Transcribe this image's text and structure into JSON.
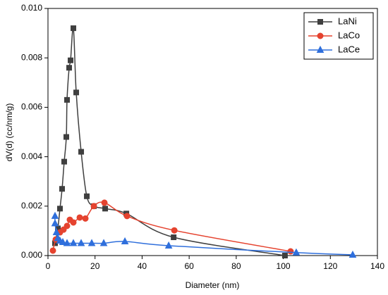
{
  "chart_data": {
    "type": "line",
    "xlabel": "Diameter (nm)",
    "ylabel": "dV(d) (cc/nm/g)",
    "xlim": [
      0,
      140
    ],
    "xticks": [
      0,
      20,
      40,
      60,
      80,
      100,
      120,
      140
    ],
    "ylim": [
      0,
      0.01
    ],
    "yticks": [
      {
        "value": 0,
        "label": "0.000"
      },
      {
        "value": 0.002,
        "label": "0.002"
      },
      {
        "value": 0.004,
        "label": "0.004"
      },
      {
        "value": 0.006,
        "label": "0.006"
      },
      {
        "value": 0.008,
        "label": "0.008"
      },
      {
        "value": 0.01,
        "label": "0.010"
      }
    ],
    "legend": "upper right",
    "series": [
      {
        "name": "LaNi",
        "color": "#3f3f3f",
        "marker": "square",
        "x": [
          3.0,
          4.2,
          5.1,
          6.0,
          6.9,
          7.8,
          8.1,
          9.0,
          9.6,
          10.8,
          12.0,
          14.1,
          16.5,
          19.5,
          24.3,
          33.3,
          53.4,
          100.7
        ],
        "values": [
          0.0005,
          0.0011,
          0.0019,
          0.0027,
          0.0038,
          0.0048,
          0.0063,
          0.0076,
          0.0079,
          0.0092,
          0.0066,
          0.0042,
          0.0024,
          0.002,
          0.0019,
          0.0017,
          0.00074,
          0.0
        ]
      },
      {
        "name": "LaCo",
        "color": "#e5432f",
        "marker": "circle",
        "x": [
          2.1,
          3.3,
          5.1,
          6.6,
          8.1,
          9.3,
          10.8,
          13.5,
          15.9,
          19.5,
          24.0,
          33.6,
          53.7,
          103.1
        ],
        "values": [
          0.0002,
          0.00065,
          0.00094,
          0.00105,
          0.0012,
          0.00145,
          0.00134,
          0.00154,
          0.0015,
          0.002,
          0.00214,
          0.0016,
          0.00102,
          0.00017
        ]
      },
      {
        "name": "LaCe",
        "color": "#2f6fdc",
        "marker": "triangle",
        "x": [
          3.0,
          3.0,
          3.6,
          4.2,
          5.1,
          6.3,
          8.1,
          10.8,
          14.1,
          18.6,
          23.7,
          32.7,
          51.3,
          105.5,
          129.5
        ],
        "values": [
          0.0016,
          0.0013,
          0.00094,
          0.0007,
          0.0006,
          0.00054,
          0.0005,
          0.0005,
          0.0005,
          0.0005,
          0.0005,
          0.00057,
          0.0004,
          0.00012,
          3e-05
        ]
      }
    ]
  }
}
